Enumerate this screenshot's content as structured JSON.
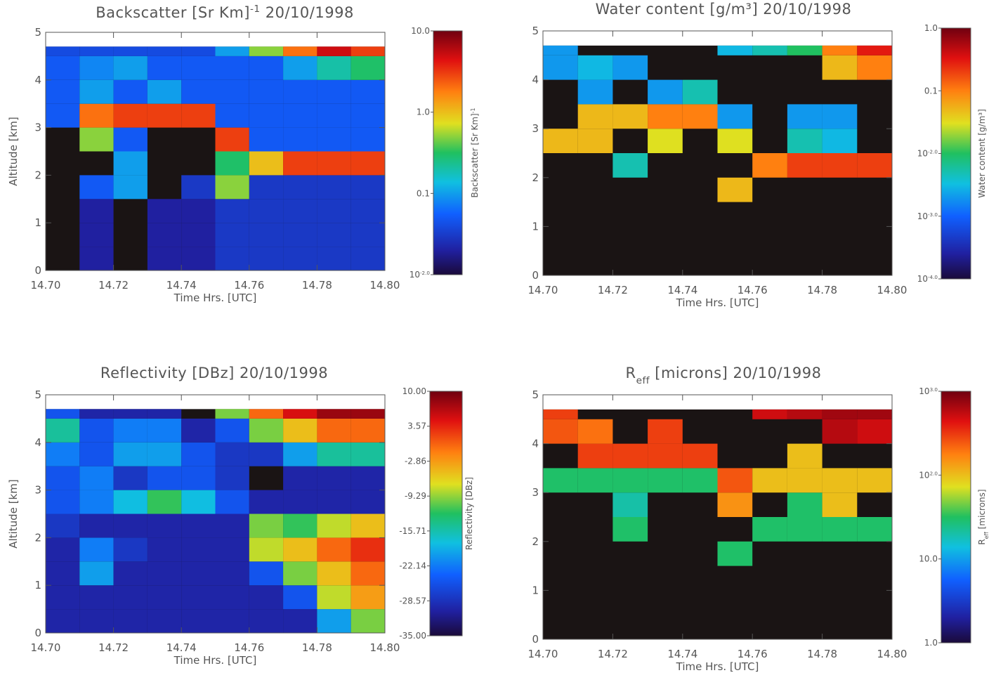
{
  "chart_data": [
    {
      "type": "heatmap",
      "title_parts": [
        {
          "text": "Backscatter [Sr Km]"
        },
        {
          "text": "-1",
          "sup": true
        },
        {
          "text": " 20/10/1998"
        }
      ],
      "x_label": "Time Hrs. [UTC]",
      "y_label": "Altitude [km]",
      "colorbar_parts": [
        {
          "text": "Backscatter [Sr Km]"
        },
        {
          "text": "-1",
          "sup": true
        }
      ],
      "xlim": [
        14.7,
        14.8
      ],
      "ylim": [
        0,
        5
      ],
      "xticks": [
        {
          "value": 14.7,
          "label": "14.70"
        },
        14.72,
        14.74,
        14.76,
        14.78,
        {
          "value": 14.8,
          "label": "14.80"
        }
      ],
      "yticks": [
        0,
        1,
        2,
        3,
        4,
        5
      ],
      "log_color": true,
      "zlim": [
        0.01,
        10
      ],
      "zticks": [
        {
          "value": 10,
          "label": "10.0"
        },
        {
          "value": 1,
          "label": "1.0"
        },
        0.1,
        {
          "value": 0.01,
          "label": "10",
          "exponent": "-2.0"
        }
      ],
      "x_edges": [
        14.7,
        14.71,
        14.72,
        14.73,
        14.74,
        14.75,
        14.76,
        14.77,
        14.78,
        14.79,
        14.8
      ],
      "y_edges": [
        0,
        0.5,
        1,
        1.5,
        2,
        2.5,
        3,
        3.5,
        4,
        4.5,
        4.7
      ],
      "z": [
        [
          null,
          0.02,
          null,
          0.02,
          0.02,
          0.03,
          0.03,
          0.03,
          0.03,
          0.03
        ],
        [
          null,
          0.02,
          null,
          0.02,
          0.02,
          0.03,
          0.03,
          0.03,
          0.03,
          0.03
        ],
        [
          null,
          0.02,
          null,
          0.02,
          0.02,
          0.03,
          0.03,
          0.03,
          0.03,
          0.03
        ],
        [
          null,
          0.05,
          0.1,
          null,
          0.03,
          0.5,
          0.03,
          0.03,
          0.03,
          0.03
        ],
        [
          null,
          null,
          0.1,
          null,
          null,
          0.3,
          1,
          3,
          3,
          3
        ],
        [
          null,
          0.5,
          0.05,
          null,
          null,
          3,
          0.05,
          0.05,
          0.05,
          0.05
        ],
        [
          0.05,
          2,
          3,
          3,
          3,
          0.05,
          0.05,
          0.05,
          0.05,
          0.05
        ],
        [
          0.05,
          0.1,
          0.05,
          0.1,
          0.05,
          0.05,
          0.05,
          0.05,
          0.05,
          0.05
        ],
        [
          0.05,
          0.08,
          0.1,
          0.05,
          0.05,
          0.05,
          0.05,
          0.1,
          0.2,
          0.3
        ],
        [
          0.04,
          0.04,
          0.04,
          0.04,
          0.04,
          0.1,
          0.5,
          2,
          5,
          3
        ]
      ]
    },
    {
      "type": "heatmap",
      "title_parts": [
        {
          "text": "Water content [g/m³] 20/10/1998"
        }
      ],
      "x_label": "Time Hrs. [UTC]",
      "colorbar_parts": [
        {
          "text": "Water content [g/m³]"
        }
      ],
      "xlim": [
        14.7,
        14.8
      ],
      "ylim": [
        0,
        5
      ],
      "xticks": [
        {
          "value": 14.7,
          "label": "14.70"
        },
        14.72,
        14.74,
        14.76,
        14.78,
        {
          "value": 14.8,
          "label": "14.80"
        }
      ],
      "yticks": [
        0,
        1,
        2,
        3,
        4,
        5
      ],
      "log_color": true,
      "zlim": [
        0.0001,
        1
      ],
      "zticks": [
        {
          "value": 1,
          "label": "1.0"
        },
        0.1,
        {
          "value": 0.01,
          "label": "10",
          "exponent": "-2.0"
        },
        {
          "value": 0.001,
          "label": "10",
          "exponent": "-3.0"
        },
        {
          "value": 0.0001,
          "label": "10",
          "exponent": "-4.0"
        }
      ],
      "x_edges": [
        14.7,
        14.71,
        14.72,
        14.73,
        14.74,
        14.75,
        14.76,
        14.77,
        14.78,
        14.79,
        14.8
      ],
      "y_edges": [
        0,
        0.5,
        1,
        1.5,
        2,
        2.5,
        3,
        3.5,
        4,
        4.5,
        4.7
      ],
      "z": [
        [
          null,
          null,
          null,
          null,
          null,
          null,
          null,
          null,
          null,
          null
        ],
        [
          null,
          null,
          null,
          null,
          null,
          null,
          null,
          null,
          null,
          null
        ],
        [
          null,
          null,
          null,
          null,
          null,
          null,
          null,
          null,
          null,
          null
        ],
        [
          null,
          null,
          null,
          null,
          null,
          0.05,
          null,
          null,
          null,
          null
        ],
        [
          null,
          null,
          0.005,
          null,
          null,
          null,
          0.1,
          0.2,
          0.2,
          0.2
        ],
        [
          0.05,
          0.05,
          null,
          0.03,
          null,
          0.03,
          null,
          0.005,
          0.003,
          null
        ],
        [
          null,
          0.05,
          0.05,
          0.1,
          0.1,
          0.002,
          null,
          0.002,
          0.002,
          null
        ],
        [
          null,
          0.002,
          null,
          0.002,
          0.005,
          null,
          null,
          null,
          null,
          null
        ],
        [
          0.002,
          0.003,
          0.002,
          null,
          null,
          null,
          null,
          null,
          0.05,
          0.1
        ],
        [
          0.002,
          null,
          null,
          null,
          null,
          0.003,
          0.005,
          0.01,
          0.1,
          0.3
        ]
      ]
    },
    {
      "type": "heatmap",
      "title_parts": [
        {
          "text": "Reflectivity [DBz] 20/10/1998"
        }
      ],
      "x_label": "Time Hrs. [UTC]",
      "y_label": "Altitude [km]",
      "colorbar_parts": [
        {
          "text": "Reflectivity [DBz]"
        }
      ],
      "xlim": [
        14.7,
        14.8
      ],
      "ylim": [
        0,
        5
      ],
      "xticks": [
        {
          "value": 14.7,
          "label": "14.70"
        },
        14.72,
        14.74,
        14.76,
        14.78,
        {
          "value": 14.8,
          "label": "14.80"
        }
      ],
      "yticks": [
        0,
        1,
        2,
        3,
        4,
        5
      ],
      "log_color": false,
      "zlim": [
        -35,
        10
      ],
      "zticks": [
        {
          "value": 10,
          "label": "10.00"
        },
        3.57,
        -2.86,
        -9.29,
        -15.71,
        -22.14,
        -28.57,
        {
          "value": -35,
          "label": "-35.00"
        }
      ],
      "x_edges": [
        14.7,
        14.71,
        14.72,
        14.73,
        14.74,
        14.75,
        14.76,
        14.77,
        14.78,
        14.79,
        14.8
      ],
      "y_edges": [
        0,
        0.5,
        1,
        1.5,
        2,
        2.5,
        3,
        3.5,
        4,
        4.5,
        4.7
      ],
      "z": [
        [
          -30,
          -30,
          -30,
          -30,
          -30,
          -30,
          -30,
          -30,
          -20,
          -10
        ],
        [
          -30,
          -30,
          -30,
          -30,
          -30,
          -30,
          -30,
          -25,
          -8,
          -3
        ],
        [
          -30,
          -20,
          -30,
          -30,
          -30,
          -30,
          -25,
          -10,
          -5,
          0
        ],
        [
          -30,
          -22,
          -28,
          -30,
          -30,
          -30,
          -8,
          -5,
          0,
          3
        ],
        [
          -28,
          -30,
          -30,
          -30,
          -30,
          -30,
          -10,
          -12,
          -8,
          -5
        ],
        [
          -25,
          -22,
          -18,
          -12,
          -18,
          -25,
          -30,
          -30,
          -30,
          -30
        ],
        [
          -25,
          -22,
          -28,
          -25,
          -25,
          -28,
          null,
          -30,
          -30,
          -30
        ],
        [
          -22,
          -25,
          -20,
          -20,
          -25,
          -28,
          -28,
          -20,
          -15,
          -15
        ],
        [
          -15,
          -25,
          -22,
          -22,
          -30,
          -25,
          -10,
          -5,
          0,
          0
        ],
        [
          -25,
          -30,
          -30,
          -30,
          null,
          -10,
          0,
          5,
          8,
          8
        ]
      ]
    },
    {
      "type": "heatmap",
      "title_parts": [
        {
          "text": "R"
        },
        {
          "text": "eff",
          "sub": true
        },
        {
          "text": " [microns] 20/10/1998"
        }
      ],
      "x_label": "Time Hrs. [UTC]",
      "colorbar_parts": [
        {
          "text": "R"
        },
        {
          "text": "eff",
          "sub": true
        },
        {
          "text": " [microns]"
        }
      ],
      "xlim": [
        14.7,
        14.8
      ],
      "ylim": [
        0,
        5
      ],
      "xticks": [
        {
          "value": 14.7,
          "label": "14.70"
        },
        14.72,
        14.74,
        14.76,
        14.78,
        {
          "value": 14.8,
          "label": "14.80"
        }
      ],
      "yticks": [
        0,
        1,
        2,
        3,
        4,
        5
      ],
      "log_color": true,
      "zlim": [
        1,
        1000
      ],
      "zticks": [
        {
          "value": 1000,
          "label": "10",
          "exponent": "3.0"
        },
        {
          "value": 100,
          "label": "10",
          "exponent": "2.0"
        },
        {
          "value": 10,
          "label": "10.0"
        },
        {
          "value": 1,
          "label": "1.0"
        }
      ],
      "x_edges": [
        14.7,
        14.71,
        14.72,
        14.73,
        14.74,
        14.75,
        14.76,
        14.77,
        14.78,
        14.79,
        14.8
      ],
      "y_edges": [
        0,
        0.5,
        1,
        1.5,
        2,
        2.5,
        3,
        3.5,
        4,
        4.5,
        4.7
      ],
      "z": [
        [
          null,
          null,
          null,
          null,
          null,
          null,
          null,
          null,
          null,
          null
        ],
        [
          null,
          null,
          null,
          null,
          null,
          null,
          null,
          null,
          null,
          null
        ],
        [
          null,
          null,
          null,
          null,
          null,
          null,
          null,
          null,
          null,
          null
        ],
        [
          null,
          null,
          null,
          null,
          null,
          30,
          null,
          null,
          null,
          null
        ],
        [
          null,
          null,
          30,
          null,
          null,
          null,
          30,
          30,
          30,
          30
        ],
        [
          null,
          null,
          20,
          null,
          null,
          150,
          null,
          30,
          100,
          null
        ],
        [
          30,
          30,
          30,
          30,
          30,
          250,
          100,
          100,
          100,
          100
        ],
        [
          null,
          300,
          300,
          300,
          300,
          null,
          null,
          100,
          null,
          null
        ],
        [
          250,
          200,
          null,
          300,
          null,
          null,
          null,
          null,
          600,
          500
        ],
        [
          300,
          null,
          null,
          null,
          null,
          null,
          500,
          600,
          700,
          700
        ]
      ]
    }
  ]
}
